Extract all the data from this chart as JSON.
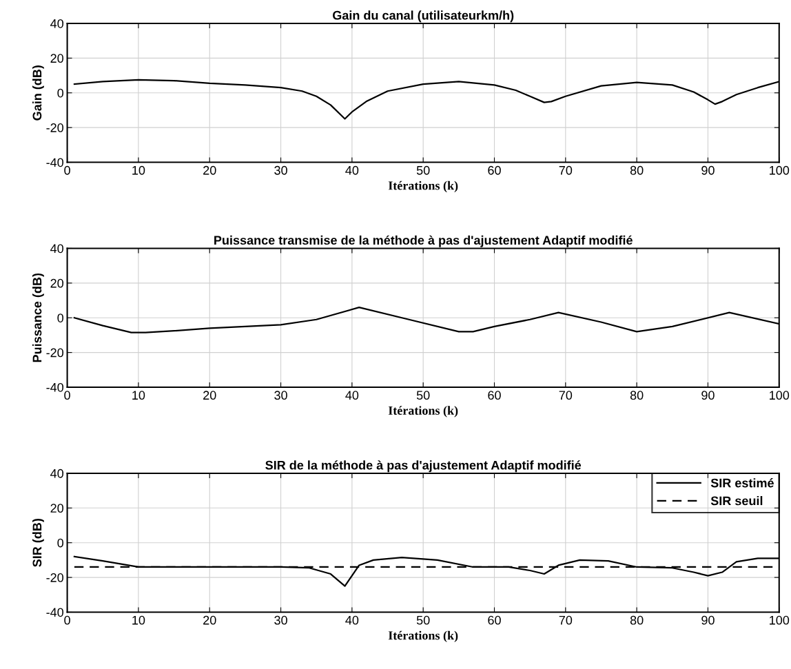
{
  "chart_data": [
    {
      "type": "line",
      "title": "Gain du canal (utilisateurkm/h)",
      "xlabel": "Itérations (k)",
      "ylabel": "Gain (dB)",
      "xlim": [
        0,
        100
      ],
      "xticks": [
        0,
        10,
        20,
        30,
        40,
        50,
        60,
        70,
        80,
        90,
        100
      ],
      "ylim": [
        -40,
        40
      ],
      "yticks": [
        -40,
        -20,
        0,
        20,
        40
      ],
      "grid": true,
      "legend": false,
      "series": [
        {
          "color": "#000000",
          "line_style": "solid",
          "x": [
            1,
            5,
            10,
            15,
            20,
            25,
            30,
            33,
            35,
            37,
            39,
            40,
            42,
            45,
            50,
            55,
            60,
            63,
            65,
            67,
            68,
            70,
            75,
            80,
            85,
            88,
            90,
            91,
            92,
            94,
            97,
            100
          ],
          "values": [
            5,
            6.5,
            7.5,
            7,
            5.5,
            4.5,
            3,
            1,
            -2,
            -7,
            -15,
            -11,
            -5,
            1,
            5,
            6.5,
            4.5,
            1.5,
            -2,
            -5.5,
            -5,
            -2,
            4,
            6,
            4.5,
            0.5,
            -4,
            -6.5,
            -5,
            -1,
            3,
            6.5
          ]
        }
      ]
    },
    {
      "type": "line",
      "title": "Puissance transmise de la méthode à pas d'ajustement Adaptif modifié",
      "xlabel": "Itérations (k)",
      "ylabel": "Puissance (dB)",
      "xlim": [
        0,
        100
      ],
      "xticks": [
        0,
        10,
        20,
        30,
        40,
        50,
        60,
        70,
        80,
        90,
        100
      ],
      "ylim": [
        -40,
        40
      ],
      "yticks": [
        -40,
        -20,
        0,
        20,
        40
      ],
      "grid": true,
      "legend": false,
      "series": [
        {
          "color": "#000000",
          "line_style": "solid",
          "x": [
            1,
            5,
            9,
            11,
            15,
            20,
            25,
            30,
            35,
            41,
            48,
            55,
            57,
            60,
            65,
            69,
            75,
            80,
            85,
            93,
            100
          ],
          "values": [
            0,
            -4.5,
            -8.5,
            -8.5,
            -7.5,
            -6,
            -5,
            -4,
            -1,
            6,
            -1,
            -8,
            -8,
            -5,
            -1,
            3,
            -2.5,
            -8,
            -5,
            3,
            -3.5
          ]
        }
      ]
    },
    {
      "type": "line",
      "title": "SIR de la méthode à pas d'ajustement Adaptif modifié",
      "xlabel": "Itérations (k)",
      "ylabel": "SIR (dB)",
      "xlim": [
        0,
        100
      ],
      "xticks": [
        0,
        10,
        20,
        30,
        40,
        50,
        60,
        70,
        80,
        90,
        100
      ],
      "ylim": [
        -40,
        40
      ],
      "yticks": [
        -40,
        -20,
        0,
        20,
        40
      ],
      "grid": true,
      "legend": "top right",
      "series": [
        {
          "name": "SIR estimé",
          "color": "#000000",
          "line_style": "solid",
          "x": [
            1,
            5,
            10,
            20,
            30,
            34,
            37,
            39,
            41,
            43,
            47,
            52,
            57,
            62,
            65,
            67,
            69,
            72,
            76,
            80,
            85,
            88,
            90,
            92,
            94,
            97,
            100
          ],
          "values": [
            -8,
            -10.5,
            -14,
            -14,
            -14,
            -14.5,
            -18,
            -25,
            -13,
            -10,
            -8.5,
            -10,
            -14,
            -14,
            -16,
            -18,
            -13,
            -10,
            -10.5,
            -14,
            -14.5,
            -17,
            -19,
            -17,
            -11,
            -9,
            -9
          ]
        },
        {
          "name": "SIR seuil",
          "color": "#000000",
          "line_style": "dashed",
          "x": [
            1,
            100
          ],
          "values": [
            -14,
            -14
          ]
        }
      ]
    }
  ]
}
